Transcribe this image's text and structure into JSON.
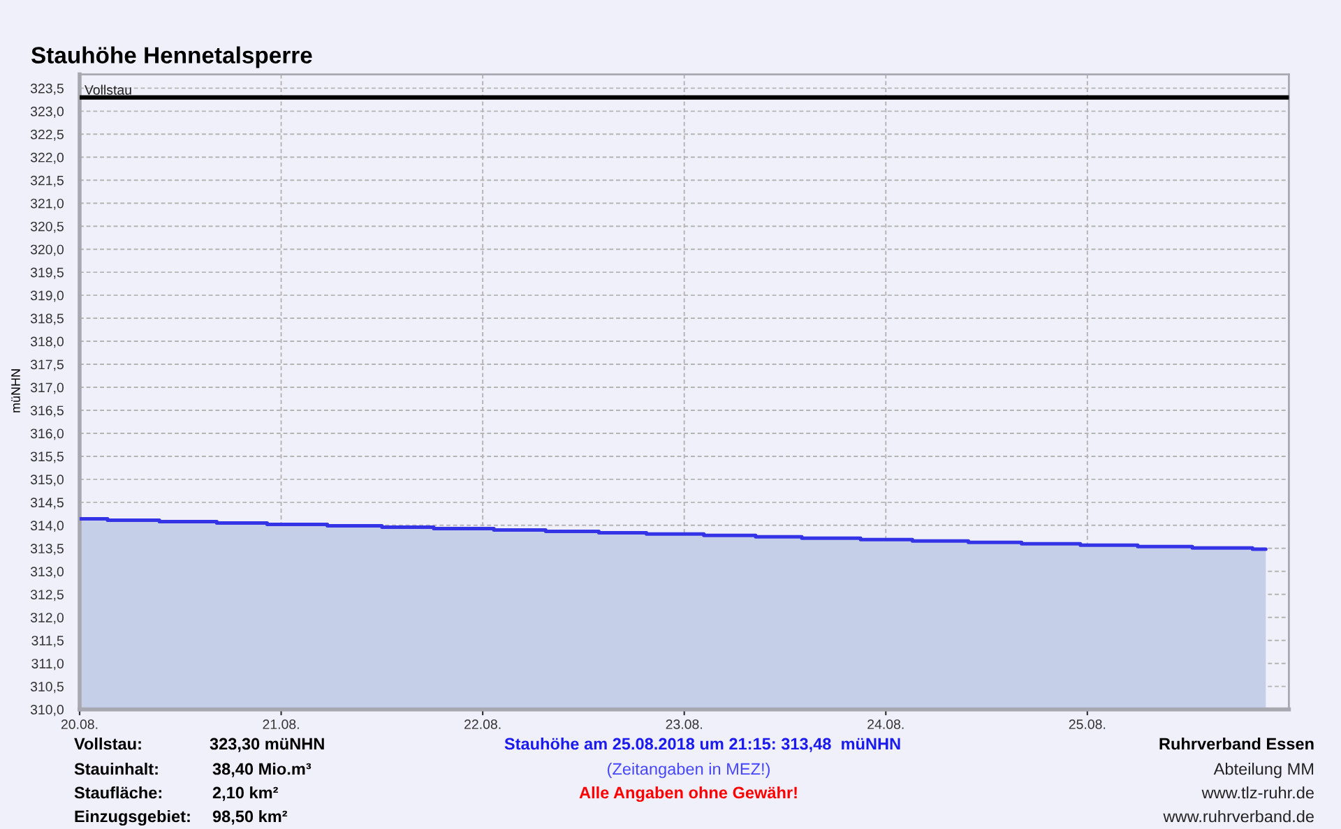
{
  "chart_data": {
    "type": "area",
    "title": "Stauhöhe Hennetalsperre",
    "ylabel": "müNHN",
    "series": [
      {
        "color": "#3434e6",
        "x": [
          "2018-08-20T00:00",
          "2018-08-20T03:20",
          "2018-08-20T03:20",
          "2018-08-20T09:30",
          "2018-08-20T09:30",
          "2018-08-20T16:20",
          "2018-08-20T16:20",
          "2018-08-20T22:20",
          "2018-08-20T22:20",
          "2018-08-21T05:30",
          "2018-08-21T05:30",
          "2018-08-21T12:00",
          "2018-08-21T12:00",
          "2018-08-21T18:10",
          "2018-08-21T18:10",
          "2018-08-22T01:20",
          "2018-08-22T01:20",
          "2018-08-22T07:30",
          "2018-08-22T07:30",
          "2018-08-22T13:50",
          "2018-08-22T13:50",
          "2018-08-22T19:30",
          "2018-08-22T19:30",
          "2018-08-23T02:20",
          "2018-08-23T02:20",
          "2018-08-23T08:30",
          "2018-08-23T08:30",
          "2018-08-23T14:00",
          "2018-08-23T14:00",
          "2018-08-23T21:00",
          "2018-08-23T21:00",
          "2018-08-24T03:10",
          "2018-08-24T03:10",
          "2018-08-24T09:50",
          "2018-08-24T09:50",
          "2018-08-24T16:10",
          "2018-08-24T16:10",
          "2018-08-24T23:10",
          "2018-08-24T23:10",
          "2018-08-25T06:00",
          "2018-08-25T06:00",
          "2018-08-25T12:30",
          "2018-08-25T12:30",
          "2018-08-25T19:40",
          "2018-08-25T19:40",
          "2018-08-25T21:15"
        ],
        "values": [
          314.14,
          314.14,
          314.11,
          314.11,
          314.08,
          314.08,
          314.05,
          314.05,
          314.02,
          314.02,
          313.99,
          313.99,
          313.96,
          313.96,
          313.93,
          313.93,
          313.9,
          313.9,
          313.87,
          313.87,
          313.84,
          313.84,
          313.81,
          313.81,
          313.78,
          313.78,
          313.75,
          313.75,
          313.72,
          313.72,
          313.69,
          313.69,
          313.66,
          313.66,
          313.63,
          313.63,
          313.6,
          313.6,
          313.57,
          313.57,
          313.54,
          313.54,
          313.51,
          313.51,
          313.48,
          313.48
        ]
      }
    ],
    "xlim": [
      "2018-08-20",
      "2018-08-26"
    ],
    "xticks": [
      {
        "value": "2018-08-20",
        "label": "20.08."
      },
      {
        "value": "2018-08-21",
        "label": "21.08."
      },
      {
        "value": "2018-08-22",
        "label": "22.08."
      },
      {
        "value": "2018-08-23",
        "label": "23.08."
      },
      {
        "value": "2018-08-24",
        "label": "24.08."
      },
      {
        "value": "2018-08-25",
        "label": "25.08."
      }
    ],
    "ylim": [
      310.0,
      323.8
    ],
    "yticks": [
      {
        "value": 310.0,
        "label": "310,0"
      },
      {
        "value": 310.5,
        "label": "310,5"
      },
      {
        "value": 311.0,
        "label": "311,0"
      },
      {
        "value": 311.5,
        "label": "311,5"
      },
      {
        "value": 312.0,
        "label": "312,0"
      },
      {
        "value": 312.5,
        "label": "312,5"
      },
      {
        "value": 313.0,
        "label": "313,0"
      },
      {
        "value": 313.5,
        "label": "313,5"
      },
      {
        "value": 314.0,
        "label": "314,0"
      },
      {
        "value": 314.5,
        "label": "314,5"
      },
      {
        "value": 315.0,
        "label": "315,0"
      },
      {
        "value": 315.5,
        "label": "315,5"
      },
      {
        "value": 316.0,
        "label": "316,0"
      },
      {
        "value": 316.5,
        "label": "316,5"
      },
      {
        "value": 317.0,
        "label": "317,0"
      },
      {
        "value": 317.5,
        "label": "317,5"
      },
      {
        "value": 318.0,
        "label": "318,0"
      },
      {
        "value": 318.5,
        "label": "318,5"
      },
      {
        "value": 319.0,
        "label": "319,0"
      },
      {
        "value": 319.5,
        "label": "319,5"
      },
      {
        "value": 320.0,
        "label": "320,0"
      },
      {
        "value": 320.5,
        "label": "320,5"
      },
      {
        "value": 321.0,
        "label": "321,0"
      },
      {
        "value": 321.5,
        "label": "321,5"
      },
      {
        "value": 322.0,
        "label": "322,0"
      },
      {
        "value": 322.5,
        "label": "322,5"
      },
      {
        "value": 323.0,
        "label": "323,0"
      },
      {
        "value": 323.5,
        "label": "323,5"
      }
    ],
    "ref_lines": [
      {
        "axis": "y",
        "value": 323.3,
        "label": "Vollstau",
        "color": "#000000"
      }
    ],
    "grid": true,
    "annotations": [
      "Vollstau:",
      "323,30 müNHN",
      "Stauinhalt:",
      "38,40 Mio.m³",
      "Staufläche:",
      "2,10 km²",
      "Einzugsgebiet:",
      "98,50 km²",
      "Stauhöhe am 25.08.2018 um 21:15: 313,48  müNHN",
      "(Zeitangaben in MEZ!)",
      "Alle Angaben ohne Gewähr!",
      "Ruhrverband Essen",
      "Abteilung MM",
      "www.tlz-ruhr.de",
      "www.ruhrverband.de"
    ]
  }
}
